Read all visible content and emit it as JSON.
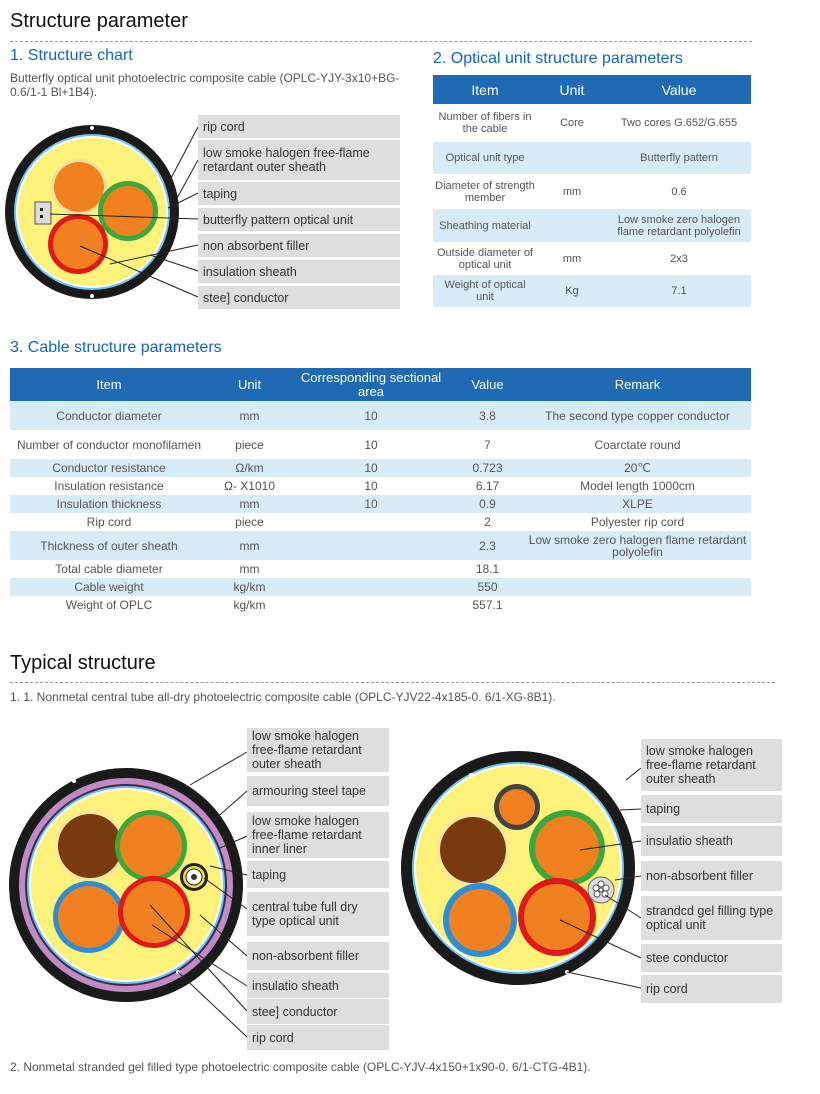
{
  "section1": {
    "title": "Structure parameter",
    "chart_heading": "1.  Structure chart",
    "description": "Butterfly optical unit photoelectric composite cable (OPLC-YJY-3x10+BG-0.6/1-1 Bl+1B4).",
    "labels": [
      "rip cord",
      "low smoke halogen free-flame retardant outer sheath",
      "taping",
      "butterfly pattern optical unit",
      "non absorbent filler",
      "insulation sheath",
      "stee] conductor"
    ]
  },
  "optical_table": {
    "heading": "2.  Optical unit structure parameters",
    "headers": [
      "Item",
      "Unit",
      "Value"
    ],
    "rows": [
      [
        "Number of fibers in the cable",
        "Core",
        "Two cores G.652/G.655"
      ],
      [
        "Optical unit type",
        "",
        "Butterfly pattern"
      ],
      [
        "Diameter of strength member",
        "mm",
        "0.6"
      ],
      [
        "Sheathing material",
        "",
        "Low smoke zero halogen flame retardant polyolefin"
      ],
      [
        "Outside diameter of optical unit",
        "mm",
        "2x3"
      ],
      [
        "Weight of optical unit",
        "Kg",
        "7.1"
      ]
    ]
  },
  "cable_table": {
    "heading": "3.  Cable structure parameters",
    "headers": [
      "Item",
      "Unit",
      "Corresponding sectional area",
      "Value",
      "Remark"
    ],
    "rows": [
      [
        "Conductor diameter",
        "mm",
        "10",
        "3.8",
        "The second type copper conductor"
      ],
      [
        "Number of conductor monofilamen",
        "piece",
        "10",
        "7",
        "Coarctate round"
      ],
      [
        "Conductor resistance",
        "Ω/km",
        "10",
        "0.723",
        "20℃"
      ],
      [
        "Insulation resistance",
        "Ω- X1010",
        "10",
        "6.17",
        "Model length 1000cm"
      ],
      [
        "Insulation thickness",
        "mm",
        "10",
        "0.9",
        "XLPE"
      ],
      [
        "Rip cord",
        "piece",
        "",
        "2",
        "Polyester rip cord"
      ],
      [
        "Thickness of outer sheath",
        "mm",
        "",
        "2.3",
        "Low smoke zero halogen flame retardant polyolefin"
      ],
      [
        "Total cable diameter",
        "mm",
        "",
        "18.1",
        ""
      ],
      [
        "Cable weight",
        "kg/km",
        "",
        "550",
        ""
      ],
      [
        "Weight of OPLC",
        "kg/km",
        "",
        "557.1",
        ""
      ]
    ]
  },
  "typical": {
    "title": "Typical structure",
    "caption1": "1.  1. Nonmetal central tube all-dry photoelectric composite cable (OPLC-YJV22-4x185-0.  6/1-XG-8B1).",
    "caption2": "2.  Nonmetal stranded gel filled type photoelectric composite cable (OPLC-YJV-4x150+1x90-0.  6/1-CTG-4B1).",
    "left_labels": [
      "low smoke halogen free-flame retardant outer sheath",
      "armouring steel tape",
      "low smoke halogen free-flame retardant inner liner",
      "taping",
      "central tube full dry type optical unit",
      "non-absorbent filler",
      "insulatio sheath",
      "stee] conductor",
      "rip cord"
    ],
    "right_labels": [
      "low smoke halogen free-flame retardant outer sheath",
      "taping",
      "insulatio sheath",
      "non-absorbent filler",
      "strandcd gel filling type optical unit",
      "stee  conductor",
      "rip cord"
    ]
  },
  "colors": {
    "brand_blue": "#1f6ab5",
    "row_tint": "#d8ecf8",
    "sheath": "#fff27a",
    "conductor": "#f08020",
    "label_bg": "#dedede"
  }
}
